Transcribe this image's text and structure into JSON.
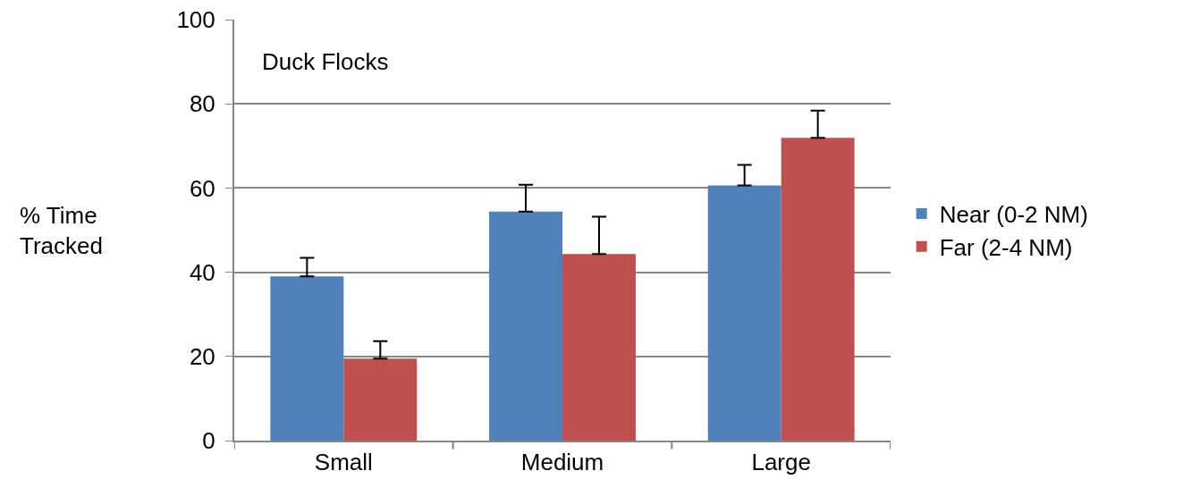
{
  "chart_data": {
    "type": "bar",
    "ylabel": "% Time\nTracked",
    "categories": [
      "Small",
      "Medium",
      "Large"
    ],
    "series": [
      {
        "name": "Near (0-2 NM)",
        "color": "#4f81bd",
        "values": [
          39,
          54.4,
          60.6
        ],
        "errors": [
          [
            39,
            43.4
          ],
          [
            54.4,
            60.8
          ],
          [
            60.6,
            65.5
          ]
        ]
      },
      {
        "name": "Far (2-4 NM)",
        "color": "#c0504d",
        "values": [
          19.5,
          44.3,
          71.9
        ],
        "errors": [
          [
            19.5,
            23.6
          ],
          [
            44.3,
            53.2
          ],
          [
            71.9,
            78.4
          ]
        ]
      }
    ],
    "annotations": [
      "Duck Flocks"
    ],
    "ylim": [
      0,
      100
    ],
    "yticks": [
      0,
      20,
      40,
      60,
      80,
      100
    ],
    "grid": "y",
    "legend": "right"
  }
}
